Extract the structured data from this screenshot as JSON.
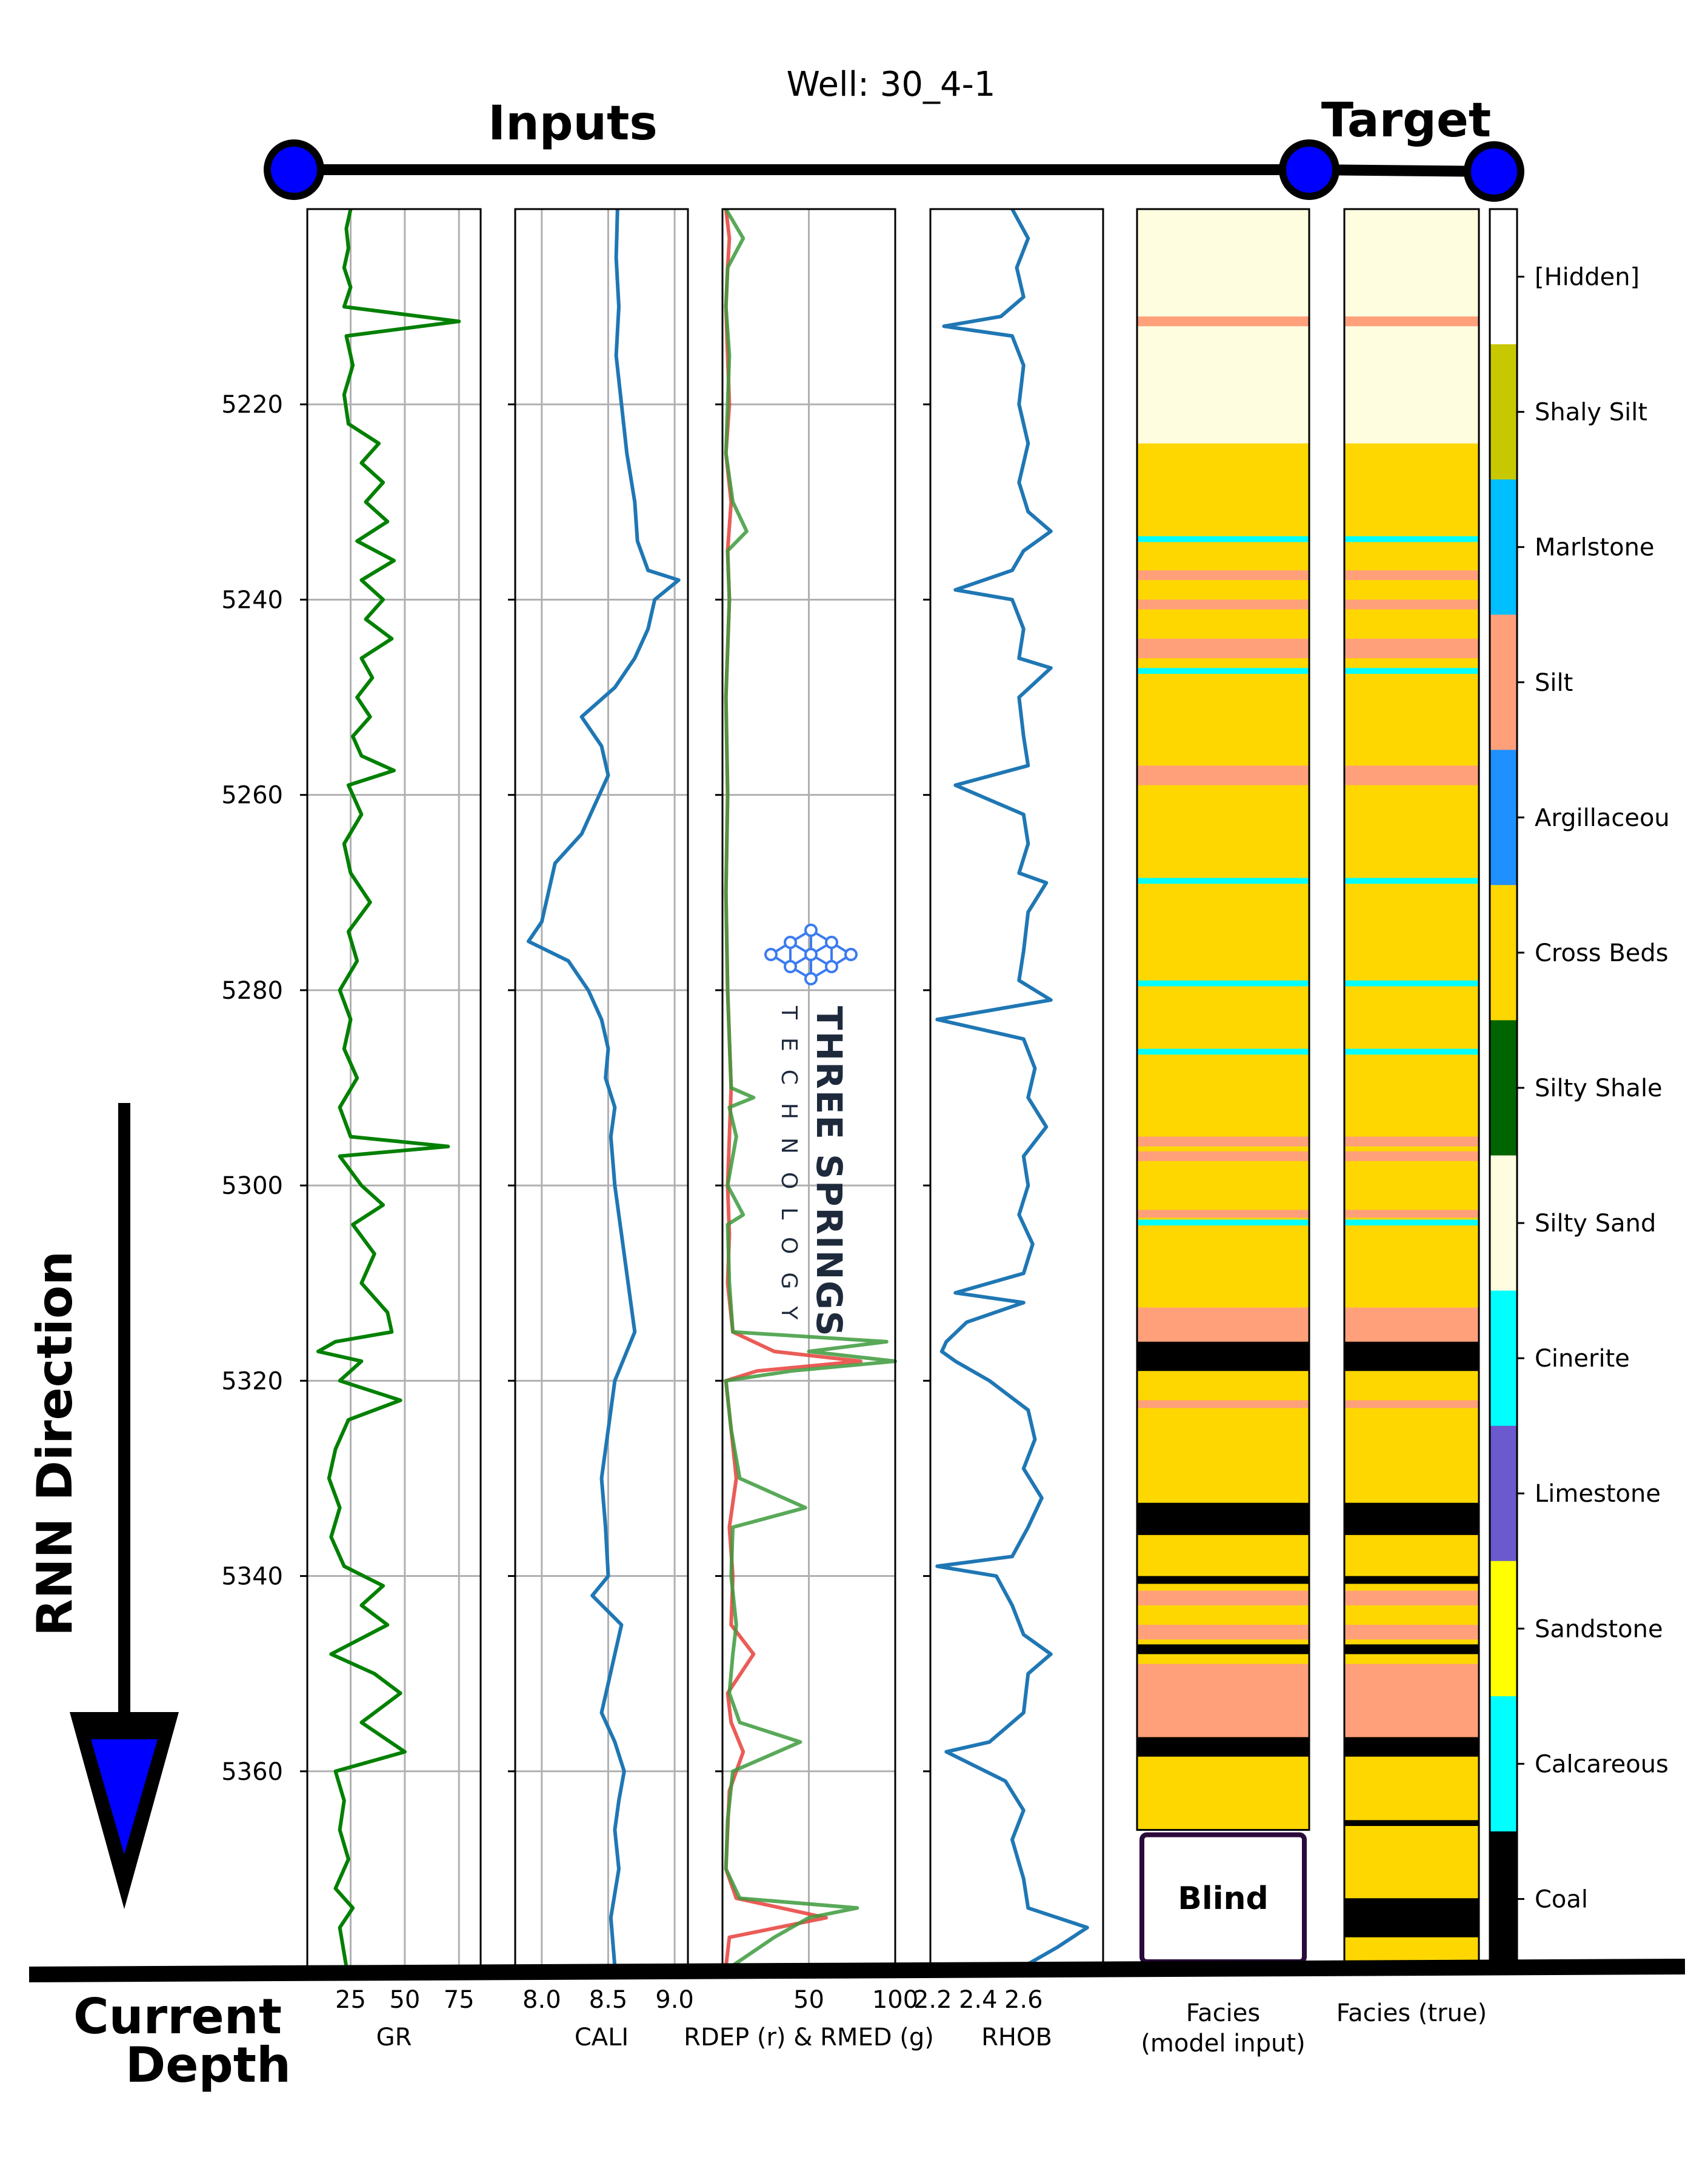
{
  "title": "Well: 30_4-1",
  "labels": {
    "inputs": "Inputs",
    "target": "Target",
    "rnn_direction": "RNN Direction",
    "current": "Current",
    "depth": "Depth",
    "blind": "Blind"
  },
  "colors": {
    "gr": "#008000",
    "cali": "#1f77b4",
    "rdep": "#e8403a",
    "rmed": "#3c9a3c",
    "rhob": "#1f77b4",
    "dot": "#0000ff",
    "arrow_head": "#0000ff"
  },
  "chart_data": {
    "type": "line",
    "depth_range": [
      5200,
      5380
    ],
    "depth_ticks": [
      5220,
      5240,
      5260,
      5280,
      5300,
      5320,
      5340,
      5360
    ],
    "tracks": [
      {
        "id": "gr",
        "xlabel": "GR",
        "xlim": [
          5,
          85
        ],
        "ticks": [
          25,
          50,
          75
        ],
        "grid": true,
        "series": [
          {
            "name": "GR",
            "color": "#008000",
            "depth": [
              5200,
              5202,
              5204,
              5206,
              5208,
              5210,
              5211.5,
              5213,
              5216,
              5219,
              5222,
              5224,
              5226,
              5228,
              5230,
              5232,
              5234,
              5236,
              5238,
              5240,
              5242,
              5244,
              5246,
              5248,
              5250,
              5252,
              5254,
              5256,
              5257.5,
              5259,
              5262,
              5265,
              5268,
              5271,
              5274,
              5277,
              5280,
              5283,
              5286,
              5289,
              5292,
              5295,
              5296,
              5297,
              5300,
              5302,
              5304,
              5307,
              5310,
              5313,
              5315,
              5316,
              5317,
              5318,
              5320,
              5322,
              5324,
              5327,
              5330,
              5333,
              5336,
              5339,
              5341,
              5343,
              5345,
              5348,
              5350,
              5352,
              5355,
              5358,
              5360,
              5363,
              5366,
              5369,
              5372,
              5374,
              5376,
              5380
            ],
            "value": [
              25,
              23,
              24,
              22,
              25,
              22,
              75,
              23,
              26,
              22,
              24,
              38,
              30,
              40,
              32,
              42,
              28,
              45,
              30,
              40,
              32,
              44,
              30,
              35,
              28,
              34,
              26,
              30,
              45,
              24,
              30,
              22,
              25,
              34,
              24,
              28,
              20,
              25,
              22,
              28,
              20,
              25,
              70,
              20,
              30,
              40,
              26,
              36,
              30,
              42,
              44,
              18,
              10,
              30,
              20,
              48,
              24,
              18,
              15,
              20,
              16,
              22,
              40,
              30,
              42,
              16,
              36,
              48,
              30,
              50,
              18,
              22,
              20,
              24,
              18,
              26,
              20,
              23
            ]
          }
        ]
      },
      {
        "id": "cali",
        "xlabel": "CALI",
        "xlim": [
          7.8,
          9.1
        ],
        "ticks": [
          8.0,
          8.5,
          9.0
        ],
        "grid": true,
        "series": [
          {
            "name": "CALI",
            "color": "#1f77b4",
            "depth": [
              5200,
              5205,
              5210,
              5215,
              5220,
              5225,
              5230,
              5234,
              5237,
              5238,
              5240,
              5243,
              5246,
              5249,
              5252,
              5255,
              5258,
              5261,
              5264,
              5267,
              5270,
              5273,
              5275,
              5277,
              5280,
              5283,
              5286,
              5289,
              5292,
              5295,
              5300,
              5305,
              5310,
              5315,
              5320,
              5325,
              5330,
              5335,
              5340,
              5342,
              5345,
              5348,
              5351,
              5354,
              5357,
              5360,
              5363,
              5366,
              5370,
              5375,
              5380
            ],
            "value": [
              8.57,
              8.56,
              8.58,
              8.56,
              8.6,
              8.64,
              8.7,
              8.72,
              8.8,
              9.03,
              8.85,
              8.8,
              8.7,
              8.55,
              8.3,
              8.45,
              8.5,
              8.4,
              8.3,
              8.1,
              8.05,
              8.0,
              7.9,
              8.2,
              8.35,
              8.45,
              8.5,
              8.48,
              8.55,
              8.52,
              8.55,
              8.6,
              8.65,
              8.7,
              8.55,
              8.5,
              8.45,
              8.48,
              8.5,
              8.38,
              8.6,
              8.55,
              8.5,
              8.45,
              8.55,
              8.62,
              8.58,
              8.55,
              8.58,
              8.52,
              8.55
            ]
          }
        ]
      },
      {
        "id": "res",
        "xlabel": "RDEP (r) & RMED (g)",
        "xlim": [
          0,
          100
        ],
        "ticks": [
          50,
          100
        ],
        "grid": true,
        "series": [
          {
            "name": "RDEP",
            "color": "#e8403a",
            "depth": [
              5200,
              5203,
              5206,
              5210,
              5215,
              5220,
              5225,
              5230,
              5235,
              5240,
              5250,
              5260,
              5270,
              5280,
              5290,
              5295,
              5300,
              5305,
              5310,
              5315,
              5317,
              5318,
              5319,
              5320,
              5325,
              5330,
              5335,
              5340,
              5345,
              5348,
              5352,
              5355,
              5358,
              5362,
              5366,
              5370,
              5373,
              5375,
              5377,
              5380
            ],
            "value": [
              2,
              4,
              3,
              2,
              3,
              4,
              2,
              5,
              3,
              4,
              2,
              3,
              2,
              3,
              5,
              4,
              3,
              4,
              3,
              6,
              30,
              80,
              20,
              2,
              5,
              8,
              4,
              6,
              5,
              18,
              3,
              5,
              12,
              4,
              3,
              2,
              8,
              60,
              4,
              2
            ]
          },
          {
            "name": "RMED",
            "color": "#3c9a3c",
            "depth": [
              5200,
              5203,
              5206,
              5210,
              5215,
              5220,
              5225,
              5230,
              5233,
              5235,
              5240,
              5250,
              5260,
              5270,
              5280,
              5290,
              5291,
              5292,
              5295,
              5300,
              5303,
              5304,
              5310,
              5315,
              5316,
              5317,
              5318,
              5319,
              5320,
              5325,
              5330,
              5333,
              5335,
              5340,
              5345,
              5348,
              5352,
              5355,
              5357,
              5360,
              5365,
              5370,
              5373,
              5374,
              5375,
              5377,
              5380
            ],
            "value": [
              2,
              12,
              3,
              2,
              4,
              3,
              2,
              6,
              14,
              3,
              4,
              2,
              3,
              2,
              3,
              5,
              18,
              4,
              8,
              3,
              12,
              3,
              4,
              6,
              95,
              50,
              100,
              40,
              2,
              5,
              10,
              48,
              6,
              5,
              8,
              6,
              4,
              10,
              45,
              6,
              3,
              2,
              10,
              78,
              50,
              30,
              5
            ]
          }
        ]
      },
      {
        "id": "rhob",
        "xlabel": "RHOB",
        "xlim": [
          2.19,
          2.95
        ],
        "ticks": [
          2.2,
          2.4,
          2.6
        ],
        "grid": false,
        "series": [
          {
            "name": "RHOB",
            "color": "#1f77b4",
            "depth": [
              5200,
              5203,
              5206,
              5209,
              5211,
              5212,
              5213,
              5216,
              5220,
              5224,
              5228,
              5231,
              5233,
              5235,
              5237,
              5239,
              5240,
              5243,
              5246,
              5247,
              5250,
              5254,
              5257,
              5259,
              5262,
              5265,
              5268,
              5269,
              5272,
              5276,
              5279,
              5281,
              5283,
              5285,
              5288,
              5291,
              5294,
              5297,
              5300,
              5303,
              5306,
              5309,
              5311,
              5312,
              5314,
              5316,
              5317,
              5318,
              5320,
              5323,
              5326,
              5329,
              5332,
              5335,
              5338,
              5339,
              5340,
              5343,
              5346,
              5348,
              5350,
              5354,
              5357,
              5358,
              5361,
              5364,
              5367,
              5371,
              5374,
              5376,
              5378,
              5380
            ],
            "value": [
              2.55,
              2.62,
              2.57,
              2.6,
              2.5,
              2.25,
              2.55,
              2.6,
              2.58,
              2.62,
              2.58,
              2.62,
              2.72,
              2.6,
              2.55,
              2.3,
              2.55,
              2.6,
              2.58,
              2.72,
              2.58,
              2.6,
              2.62,
              2.3,
              2.6,
              2.62,
              2.58,
              2.7,
              2.62,
              2.6,
              2.58,
              2.72,
              2.22,
              2.6,
              2.65,
              2.62,
              2.7,
              2.6,
              2.62,
              2.58,
              2.64,
              2.6,
              2.3,
              2.6,
              2.35,
              2.26,
              2.24,
              2.3,
              2.45,
              2.62,
              2.65,
              2.6,
              2.68,
              2.62,
              2.55,
              2.22,
              2.48,
              2.55,
              2.6,
              2.72,
              2.62,
              2.6,
              2.45,
              2.26,
              2.52,
              2.6,
              2.55,
              2.6,
              2.62,
              2.88,
              2.75,
              2.6
            ]
          }
        ]
      }
    ],
    "facies_columns": [
      {
        "id": "model_input",
        "xlabel": "Facies\n(model input)",
        "intervals": [
          [
            5200,
            5224,
            "Silty Sand"
          ],
          [
            5211,
            5212,
            "Silt"
          ],
          [
            5224,
            5366,
            "Cross Beds"
          ],
          [
            5233.5,
            5234.1,
            "Cinerite"
          ],
          [
            5237,
            5238,
            "Silt"
          ],
          [
            5240,
            5241,
            "Silt"
          ],
          [
            5244,
            5246,
            "Silt"
          ],
          [
            5247,
            5247.6,
            "Cinerite"
          ],
          [
            5257,
            5259,
            "Silt"
          ],
          [
            5268.5,
            5269.1,
            "Cinerite"
          ],
          [
            5279,
            5279.6,
            "Cinerite"
          ],
          [
            5286,
            5286.6,
            "Cinerite"
          ],
          [
            5295,
            5296,
            "Silt"
          ],
          [
            5296.5,
            5297.5,
            "Silt"
          ],
          [
            5302.5,
            5303.3,
            "Silt"
          ],
          [
            5303.5,
            5304.1,
            "Cinerite"
          ],
          [
            5312.5,
            5316,
            "Silt"
          ],
          [
            5316,
            5319,
            "Coal"
          ],
          [
            5322,
            5322.8,
            "Silt"
          ],
          [
            5332.5,
            5335.8,
            "Coal"
          ],
          [
            5340,
            5340.8,
            "Coal"
          ],
          [
            5341.5,
            5343,
            "Silt"
          ],
          [
            5345,
            5346.5,
            "Silt"
          ],
          [
            5347,
            5348,
            "Coal"
          ],
          [
            5349,
            5356.5,
            "Silt"
          ],
          [
            5356.5,
            5358.5,
            "Coal"
          ]
        ],
        "blind_range": [
          5366,
          5380
        ]
      },
      {
        "id": "true",
        "xlabel": "Facies (true)",
        "intervals": [
          [
            5200,
            5224,
            "Silty Sand"
          ],
          [
            5211,
            5212,
            "Silt"
          ],
          [
            5224,
            5380,
            "Cross Beds"
          ],
          [
            5233.5,
            5234.1,
            "Cinerite"
          ],
          [
            5237,
            5238,
            "Silt"
          ],
          [
            5240,
            5241,
            "Silt"
          ],
          [
            5244,
            5246,
            "Silt"
          ],
          [
            5247,
            5247.6,
            "Cinerite"
          ],
          [
            5257,
            5259,
            "Silt"
          ],
          [
            5268.5,
            5269.1,
            "Cinerite"
          ],
          [
            5279,
            5279.6,
            "Cinerite"
          ],
          [
            5286,
            5286.6,
            "Cinerite"
          ],
          [
            5295,
            5296,
            "Silt"
          ],
          [
            5296.5,
            5297.5,
            "Silt"
          ],
          [
            5302.5,
            5303.3,
            "Silt"
          ],
          [
            5303.5,
            5304.1,
            "Cinerite"
          ],
          [
            5312.5,
            5316,
            "Silt"
          ],
          [
            5316,
            5319,
            "Coal"
          ],
          [
            5322,
            5322.8,
            "Silt"
          ],
          [
            5332.5,
            5335.8,
            "Coal"
          ],
          [
            5340,
            5340.8,
            "Coal"
          ],
          [
            5341.5,
            5343,
            "Silt"
          ],
          [
            5345,
            5346.5,
            "Silt"
          ],
          [
            5347,
            5348,
            "Coal"
          ],
          [
            5349,
            5356.5,
            "Silt"
          ],
          [
            5356.5,
            5358.5,
            "Coal"
          ],
          [
            5365,
            5365.6,
            "Coal"
          ],
          [
            5373,
            5377,
            "Coal"
          ]
        ]
      }
    ],
    "legend": [
      {
        "name": "[Hidden]",
        "color": "#ffffff"
      },
      {
        "name": "Shaly Silt",
        "color": "#c8c800"
      },
      {
        "name": "Marlstone",
        "color": "#00bfff"
      },
      {
        "name": "Silt",
        "color": "#ffa07a"
      },
      {
        "name": "Argillaceou",
        "color": "#1e90ff"
      },
      {
        "name": "Cross Beds",
        "color": "#ffd700"
      },
      {
        "name": "Silty Shale",
        "color": "#006400"
      },
      {
        "name": "Silty Sand",
        "color": "#fffde0"
      },
      {
        "name": "Cinerite",
        "color": "#00ffff"
      },
      {
        "name": "Limestone",
        "color": "#6a5acd"
      },
      {
        "name": "Sandstone",
        "color": "#ffff00"
      },
      {
        "name": "Calcareous",
        "color": "#00ffff"
      },
      {
        "name": "Coal",
        "color": "#000000"
      }
    ],
    "watermark": {
      "line1": "THREE SPRINGS",
      "line2": "TECHNOLOGY"
    }
  }
}
